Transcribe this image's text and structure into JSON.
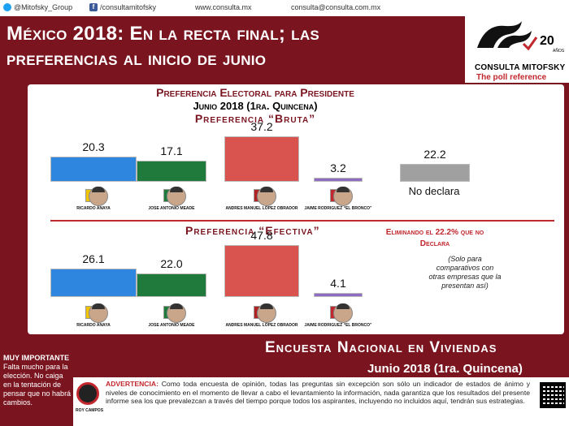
{
  "topbar": {
    "twitter": "@Mitofsky_Group",
    "facebook": "/consultamitofsky",
    "web": "www.consulta.mx",
    "email": "consulta@consulta.com.mx"
  },
  "headline": {
    "line1": "México 2018: En la recta final; las",
    "line2": "preferencias al inicio de junio"
  },
  "logo": {
    "years": "20",
    "years_label": "AÑOS",
    "name": "CONSULTA MITOFSKY",
    "tagline": "The poll reference"
  },
  "chart_data": [
    {
      "type": "bar",
      "title": "Preferencia Electoral para Presidente",
      "subtitle": "Junio 2018 (1ra. Quincena)",
      "section": "Preferencia “Bruta”",
      "categories": [
        "Ricardo Anaya",
        "Jose Antonio Meade",
        "Andres Manuel Lopez Obrador",
        "Jaime Rodriguez “El Bronco”",
        "No declara"
      ],
      "values": [
        20.3,
        17.1,
        37.2,
        3.2,
        22.2
      ],
      "value_labels": [
        "20.3",
        "17.1",
        "37.2",
        "3.2",
        "22.2"
      ],
      "colors": [
        "#2e86de",
        "#1f7a3c",
        "#d9534f",
        "#8e6cc2",
        "#a0a0a0"
      ]
    },
    {
      "type": "bar",
      "section": "Preferencia “Efectiva”",
      "categories": [
        "Ricardo Anaya",
        "Jose Antonio Meade",
        "Andres Manuel Lopez Obrador",
        "Jaime Rodriguez “El Bronco”"
      ],
      "values": [
        26.1,
        22.0,
        47.8,
        4.1
      ],
      "value_labels": [
        "26.1",
        "22.0",
        "47.8",
        "4.1"
      ],
      "colors": [
        "#2e86de",
        "#1f7a3c",
        "#d9534f",
        "#8e6cc2"
      ]
    }
  ],
  "candidates": [
    {
      "name": "RICARDO ANAYA",
      "party_color": "#f2c300"
    },
    {
      "name": "JOSE ANTONIO MEADE",
      "party_color": "#1f7a3c"
    },
    {
      "name": "ANDRES MANUEL LOPEZ OBRADOR",
      "party_color": "#b22222"
    },
    {
      "name": "JAIME RODRIGUEZ “EL BRONCO”",
      "party_color": "#c1272d"
    }
  ],
  "no_declara_label": "No declara",
  "notes": {
    "eliminando": "Eliminando el 22.2% que no Declara",
    "solo_para": "(Solo para comparativos con otras empresas que la presentan así)"
  },
  "bottom": {
    "title": "Encuesta Nacional en Viviendas",
    "subtitle": "Junio 2018 (1ra. Quincena)"
  },
  "muy_importante": {
    "label": "MUY IMPORTANTE",
    "text": "Falta mucho para la elección. No caiga en la tentación de pensar que no habrá cambios."
  },
  "footer": {
    "roy_label": "ROY CAMPOS",
    "adv_label": "ADVERTENCIA:",
    "adv_text": " Como toda encuesta de opinión, todas las preguntas sin excepción son sólo un indicador de estados de ánimo y niveles de conocimiento en el momento de llevar a cabo el levantamiento la información, nada garantiza que los resultados del presente informe sea los que prevalezcan a través del tiempo porque todos los aspirantes, incluyendo no incluidos aquí, tendrán sus estrategias."
  }
}
